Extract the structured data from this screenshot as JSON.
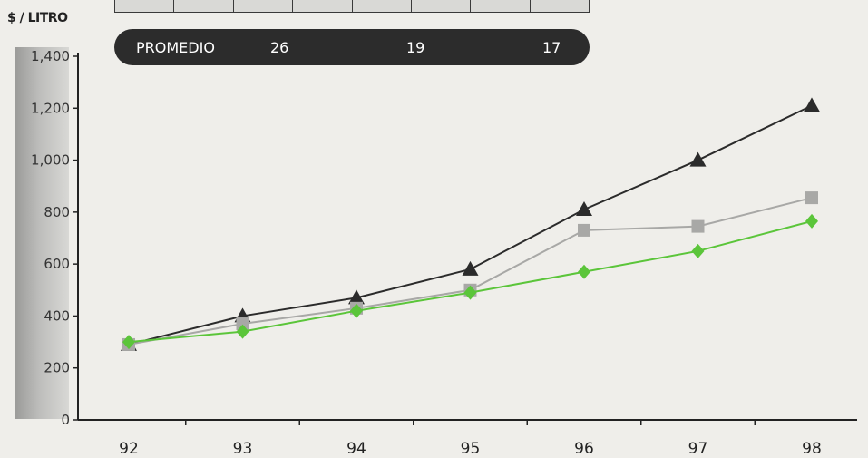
{
  "header": {
    "ylabel": "$ / LITRO",
    "top_table_cells": [
      "",
      "",
      "",
      "",
      "",
      "",
      "",
      ""
    ],
    "promedio": {
      "label": "PROMEDIO",
      "values": [
        "26",
        "19",
        "17"
      ]
    }
  },
  "chart_data": {
    "type": "line",
    "title": "",
    "xlabel": "",
    "ylabel": "$ / LITRO",
    "x": [
      "92",
      "93",
      "94",
      "95",
      "96",
      "97",
      "98"
    ],
    "ylim": [
      0,
      1400
    ],
    "yticks": [
      0,
      200,
      400,
      600,
      800,
      1000,
      1200,
      1400
    ],
    "ytick_labels": [
      "0",
      "200",
      "400",
      "600",
      "800",
      "1,000",
      "1,200",
      "1,400"
    ],
    "grid": false,
    "legend": "none",
    "series": [
      {
        "marker": "triangle",
        "color": "#2b2b2b",
        "values": [
          290,
          400,
          470,
          580,
          810,
          1000,
          1210
        ]
      },
      {
        "marker": "square",
        "color": "#a8a8a6",
        "values": [
          290,
          370,
          430,
          500,
          730,
          745,
          855
        ]
      },
      {
        "marker": "diamond",
        "color": "#5bc53a",
        "values": [
          300,
          340,
          420,
          490,
          570,
          650,
          765
        ]
      }
    ]
  }
}
